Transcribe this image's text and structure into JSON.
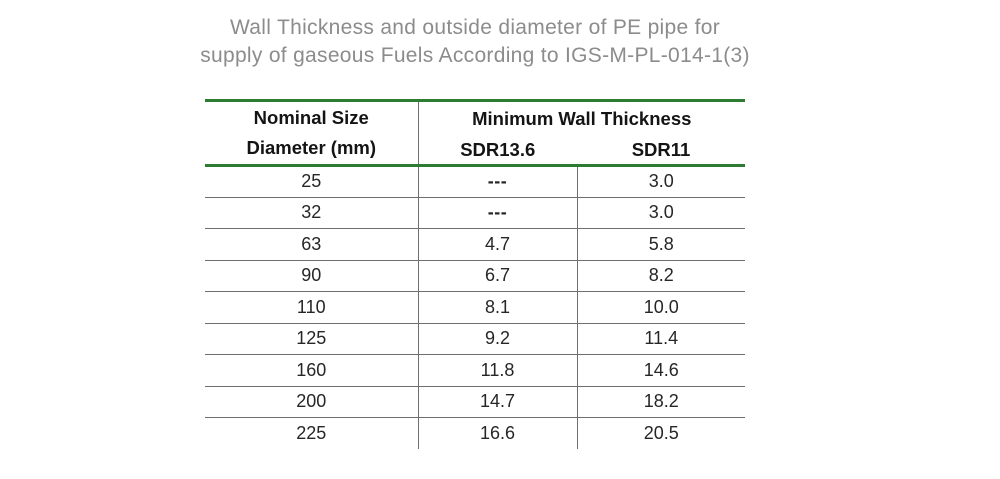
{
  "page": {
    "background": "#ffffff"
  },
  "theme": {
    "accent_green": "#2e7b33",
    "line_gray": "#6f6f6f",
    "title_gray": "#8c8c8c",
    "header_text": "#141414",
    "body_text": "#262626"
  },
  "title": {
    "line1": "Wall Thickness and outside diameter of PE pipe for",
    "line2": "supply of gaseous Fuels According to IGS-M-PL-014-1(3)"
  },
  "table": {
    "header": {
      "col1_line1": "Nominal Size",
      "col1_line2": "Diameter (mm)",
      "group": "Minimum Wall Thickness",
      "sub1": "SDR13.6",
      "sub2": "SDR11"
    },
    "columns": [
      "Nominal Size Diameter (mm)",
      "SDR13.6",
      "SDR11"
    ],
    "rows": [
      [
        "25",
        "---",
        "3.0"
      ],
      [
        "32",
        "---",
        "3.0"
      ],
      [
        "63",
        "4.7",
        "5.8"
      ],
      [
        "90",
        "6.7",
        "8.2"
      ],
      [
        "110",
        "8.1",
        "10.0"
      ],
      [
        "125",
        "9.2",
        "11.4"
      ],
      [
        "160",
        "11.8",
        "14.6"
      ],
      [
        "200",
        "14.7",
        "18.2"
      ],
      [
        "225",
        "16.6",
        "20.5"
      ]
    ]
  }
}
